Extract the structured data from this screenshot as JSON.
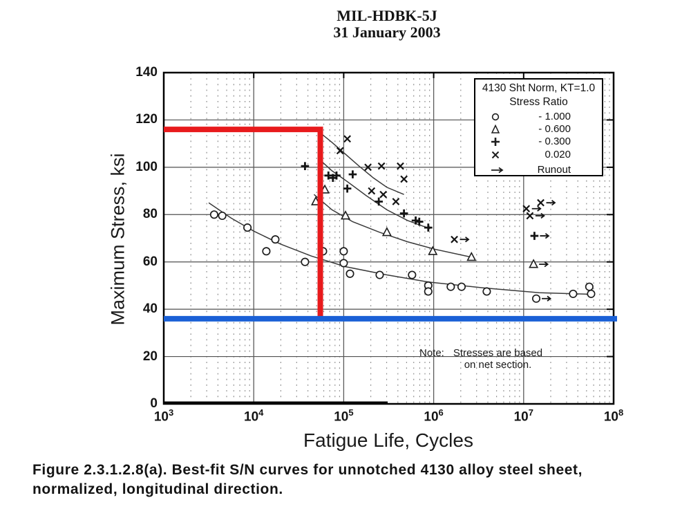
{
  "header": {
    "line1": "MIL-HDBK-5J",
    "line2": "31 January 2003"
  },
  "chart": {
    "ylabel": "Maximum Stress, ksi",
    "xlabel": "Fatigue Life, Cycles",
    "legend": {
      "title": "4130 Sht Norm, KT=1.0",
      "subtitle": "Stress Ratio",
      "entries": [
        {
          "marker": "circle",
          "label": "- 1.000"
        },
        {
          "marker": "triangle",
          "label": "- 0.600"
        },
        {
          "marker": "plus",
          "label": "- 0.300"
        },
        {
          "marker": "x",
          "label": "0.020"
        },
        {
          "marker": "arrow",
          "label": "Runout"
        }
      ]
    },
    "note": {
      "prefix": "Note:",
      "line1": "Stresses are based",
      "line2": "on net section."
    }
  },
  "caption": {
    "line1": "Figure 2.3.1.2.8(a).  Best-fit S/N curves for unnotched 4130 alloy steel sheet,",
    "line2": "normalized, longitudinal direction."
  },
  "chart_data": {
    "type": "scatter",
    "title": "4130 Sht Norm, KT=1.0",
    "xlabel": "Fatigue Life, Cycles",
    "ylabel": "Maximum Stress, ksi",
    "x_scale": "log",
    "xlim_log10": [
      3,
      8
    ],
    "x_ticks_exponents": [
      3,
      4,
      5,
      6,
      7,
      8
    ],
    "ylim": [
      0,
      140
    ],
    "y_ticks": [
      0,
      20,
      40,
      60,
      80,
      100,
      120,
      140
    ],
    "grid": {
      "major": "solid",
      "minor_x": "dotted"
    },
    "legend_position": "top-right",
    "point_format": "[log10_cycles, max_stress_ksi]",
    "series": [
      {
        "name": "Stress Ratio -1.000",
        "marker": "circle",
        "points": [
          [
            3.56,
            80
          ],
          [
            3.65,
            79.5
          ],
          [
            3.93,
            74.5
          ],
          [
            4.14,
            64.5
          ],
          [
            4.24,
            69.5
          ],
          [
            4.57,
            60
          ],
          [
            4.77,
            64.5
          ],
          [
            5.0,
            64.5
          ],
          [
            5.0,
            59.5
          ],
          [
            5.07,
            55
          ],
          [
            5.4,
            54.5
          ],
          [
            5.76,
            54.5
          ],
          [
            5.94,
            50
          ],
          [
            5.94,
            47.5
          ],
          [
            6.19,
            49.5
          ],
          [
            6.31,
            49.5
          ],
          [
            6.59,
            47.5
          ],
          [
            7.55,
            46.5
          ],
          [
            7.73,
            49.5
          ],
          [
            7.75,
            46.5
          ]
        ],
        "runouts": [
          [
            7.14,
            44.5
          ]
        ],
        "fit_curve": [
          [
            3.5,
            85
          ],
          [
            3.75,
            78.5
          ],
          [
            4.0,
            73
          ],
          [
            4.3,
            67.5
          ],
          [
            4.64,
            62.5
          ],
          [
            5.02,
            58
          ],
          [
            5.48,
            54.5
          ],
          [
            5.94,
            51.5
          ],
          [
            6.56,
            49
          ],
          [
            7.17,
            47
          ],
          [
            7.78,
            46.3
          ]
        ]
      },
      {
        "name": "Stress Ratio -0.600",
        "marker": "triangle",
        "points": [
          [
            4.69,
            85.5
          ],
          [
            4.79,
            90.5
          ],
          [
            5.02,
            79.5
          ],
          [
            5.48,
            72.5
          ],
          [
            5.99,
            64.5
          ],
          [
            6.42,
            62
          ]
        ],
        "runouts": [
          [
            7.11,
            59
          ]
        ],
        "fit_curve": [
          [
            4.67,
            88.5
          ],
          [
            4.87,
            82
          ],
          [
            5.1,
            77
          ],
          [
            5.4,
            72.5
          ],
          [
            5.71,
            68.5
          ],
          [
            6.02,
            65.3
          ],
          [
            6.42,
            62
          ]
        ]
      },
      {
        "name": "Stress Ratio -0.300",
        "marker": "plus",
        "points": [
          [
            4.57,
            100.5
          ],
          [
            4.83,
            96.5
          ],
          [
            4.88,
            95.5
          ],
          [
            4.92,
            96.5
          ],
          [
            5.1,
            97
          ],
          [
            5.04,
            91
          ],
          [
            5.39,
            85.5
          ],
          [
            5.67,
            80.5
          ],
          [
            5.8,
            77.5
          ],
          [
            5.84,
            77
          ],
          [
            5.94,
            74.5
          ]
        ],
        "runouts": [
          [
            7.12,
            71
          ]
        ],
        "fit_curve": [
          [
            4.74,
            103
          ],
          [
            4.87,
            98.5
          ],
          [
            5.02,
            94.5
          ],
          [
            5.25,
            88
          ],
          [
            5.48,
            82
          ],
          [
            5.71,
            77.5
          ],
          [
            5.96,
            74
          ]
        ]
      },
      {
        "name": "Stress Ratio 0.020",
        "marker": "x",
        "points": [
          [
            5.04,
            112
          ],
          [
            4.96,
            107
          ],
          [
            5.27,
            100
          ],
          [
            5.42,
            100.5
          ],
          [
            5.63,
            100.5
          ],
          [
            5.67,
            95
          ],
          [
            5.31,
            90
          ],
          [
            5.44,
            88.5
          ],
          [
            5.58,
            85.5
          ]
        ],
        "runouts": [
          [
            6.23,
            69.5
          ],
          [
            7.03,
            82.5
          ],
          [
            7.07,
            79.5
          ],
          [
            7.19,
            85
          ]
        ],
        "fit_curve": [
          [
            4.74,
            114.5
          ],
          [
            4.87,
            110.5
          ],
          [
            5.02,
            105.5
          ],
          [
            5.17,
            100.5
          ],
          [
            5.33,
            95.5
          ],
          [
            5.48,
            91.5
          ],
          [
            5.67,
            88.5
          ]
        ]
      }
    ],
    "annotations": {
      "red_step_line": {
        "color": "#e81a1c",
        "stress_ksi": 116,
        "cycles_log10": 4.74,
        "thickness_px": 8
      },
      "blue_horizontal_line": {
        "color": "#1a60d6",
        "stress_ksi": 36,
        "thickness_px": 8
      }
    }
  }
}
